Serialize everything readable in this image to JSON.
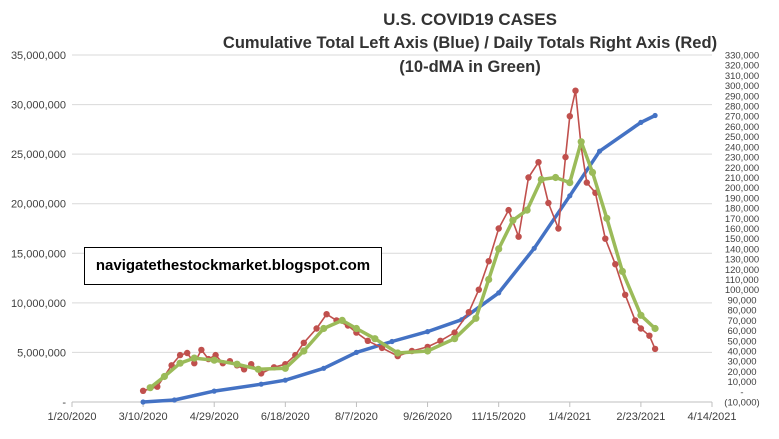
{
  "chart_data": {
    "type": "line",
    "title": "U.S. COVID19 CASES",
    "subtitle_1": "Cumulative Total Left Axis (Blue) / Daily Totals Right Axis (Red)",
    "subtitle_2": "(10-dMA in Green)",
    "annotation": "navigatethestockmarket.blogspot.com",
    "x_axis": {
      "type": "date",
      "min": "2020-01-20",
      "max": "2021-04-14",
      "ticks": [
        "2020-01-20",
        "2020-03-10",
        "2020-04-29",
        "2020-06-18",
        "2020-08-07",
        "2020-09-26",
        "2020-11-15",
        "2021-01-04",
        "2021-02-23",
        "2021-04-14"
      ],
      "tick_labels": [
        "1/20/2020",
        "3/10/2020",
        "4/29/2020",
        "6/18/2020",
        "8/7/2020",
        "9/26/2020",
        "11/15/2020",
        "1/4/2021",
        "2/23/2021",
        "4/14/2021"
      ]
    },
    "y_left": {
      "min": 0,
      "max": 35000000,
      "tick_labels": [
        "-",
        "5,000,000",
        "10,000,000",
        "15,000,000",
        "20,000,000",
        "25,000,000",
        "30,000,000",
        "35,000,000"
      ]
    },
    "y_right": {
      "min": -10000,
      "max": 330000,
      "tick_labels": [
        "(10,000)",
        "-",
        "10,000",
        "20,000",
        "30,000",
        "40,000",
        "50,000",
        "60,000",
        "70,000",
        "80,000",
        "90,000",
        "100,000",
        "110,000",
        "120,000",
        "130,000",
        "140,000",
        "150,000",
        "160,000",
        "170,000",
        "180,000",
        "190,000",
        "200,000",
        "210,000",
        "220,000",
        "230,000",
        "240,000",
        "250,000",
        "260,000",
        "270,000",
        "280,000",
        "290,000",
        "300,000",
        "310,000",
        "320,000",
        "330,000"
      ]
    },
    "series": [
      {
        "name": "Cumulative Total",
        "axis": "left",
        "color": "#4472C4",
        "x": [
          "2020-03-10",
          "2020-04-01",
          "2020-04-29",
          "2020-06-01",
          "2020-06-18",
          "2020-07-15",
          "2020-08-07",
          "2020-09-01",
          "2020-09-26",
          "2020-10-20",
          "2020-11-15",
          "2020-12-10",
          "2021-01-04",
          "2021-01-25",
          "2021-02-23",
          "2021-03-05"
        ],
        "values": [
          800,
          200000,
          1100000,
          1800000,
          2200000,
          3400000,
          5000000,
          6100000,
          7100000,
          8300000,
          11000000,
          15500000,
          20800000,
          25300000,
          28200000,
          28900000
        ]
      },
      {
        "name": "Daily Totals",
        "axis": "right",
        "color": "#C0504D",
        "x": [
          "2020-03-10",
          "2020-03-20",
          "2020-03-30",
          "2020-04-05",
          "2020-04-10",
          "2020-04-15",
          "2020-04-20",
          "2020-04-25",
          "2020-04-30",
          "2020-05-05",
          "2020-05-10",
          "2020-05-15",
          "2020-05-20",
          "2020-05-25",
          "2020-06-01",
          "2020-06-10",
          "2020-06-18",
          "2020-06-25",
          "2020-07-01",
          "2020-07-10",
          "2020-07-17",
          "2020-07-24",
          "2020-08-01",
          "2020-08-07",
          "2020-08-15",
          "2020-08-25",
          "2020-09-05",
          "2020-09-15",
          "2020-09-26",
          "2020-10-05",
          "2020-10-15",
          "2020-10-25",
          "2020-11-01",
          "2020-11-08",
          "2020-11-15",
          "2020-11-22",
          "2020-11-29",
          "2020-12-06",
          "2020-12-13",
          "2020-12-20",
          "2020-12-27",
          "2021-01-01",
          "2021-01-04",
          "2021-01-08",
          "2021-01-12",
          "2021-01-16",
          "2021-01-22",
          "2021-01-29",
          "2021-02-05",
          "2021-02-12",
          "2021-02-19",
          "2021-02-23",
          "2021-03-01",
          "2021-03-05"
        ],
        "values": [
          1000,
          5000,
          26000,
          36000,
          38000,
          28000,
          41000,
          32000,
          36000,
          28000,
          30000,
          26000,
          22000,
          27000,
          18000,
          24000,
          27000,
          36000,
          48000,
          62000,
          76000,
          70000,
          65000,
          58000,
          50000,
          43000,
          35000,
          40000,
          44000,
          50000,
          58000,
          78000,
          100000,
          128000,
          160000,
          178000,
          152000,
          210000,
          225000,
          185000,
          160000,
          230000,
          270000,
          295000,
          240000,
          205000,
          195000,
          150000,
          125000,
          95000,
          70000,
          62000,
          55000,
          42000
        ]
      },
      {
        "name": "10-dMA",
        "axis": "right",
        "color": "#9BBB59",
        "x": [
          "2020-03-15",
          "2020-03-25",
          "2020-04-05",
          "2020-04-15",
          "2020-04-29",
          "2020-05-15",
          "2020-05-30",
          "2020-06-18",
          "2020-07-01",
          "2020-07-15",
          "2020-07-28",
          "2020-08-07",
          "2020-08-20",
          "2020-09-05",
          "2020-09-26",
          "2020-10-15",
          "2020-10-30",
          "2020-11-08",
          "2020-11-15",
          "2020-11-25",
          "2020-12-05",
          "2020-12-15",
          "2020-12-25",
          "2021-01-04",
          "2021-01-12",
          "2021-01-20",
          "2021-01-30",
          "2021-02-10",
          "2021-02-23",
          "2021-03-05"
        ],
        "values": [
          4000,
          15000,
          28000,
          33000,
          31000,
          27000,
          22000,
          23000,
          40000,
          62000,
          70000,
          62000,
          52000,
          38000,
          40000,
          52000,
          72000,
          110000,
          140000,
          168000,
          178000,
          208000,
          210000,
          205000,
          245000,
          215000,
          170000,
          118000,
          75000,
          62000
        ]
      }
    ]
  }
}
